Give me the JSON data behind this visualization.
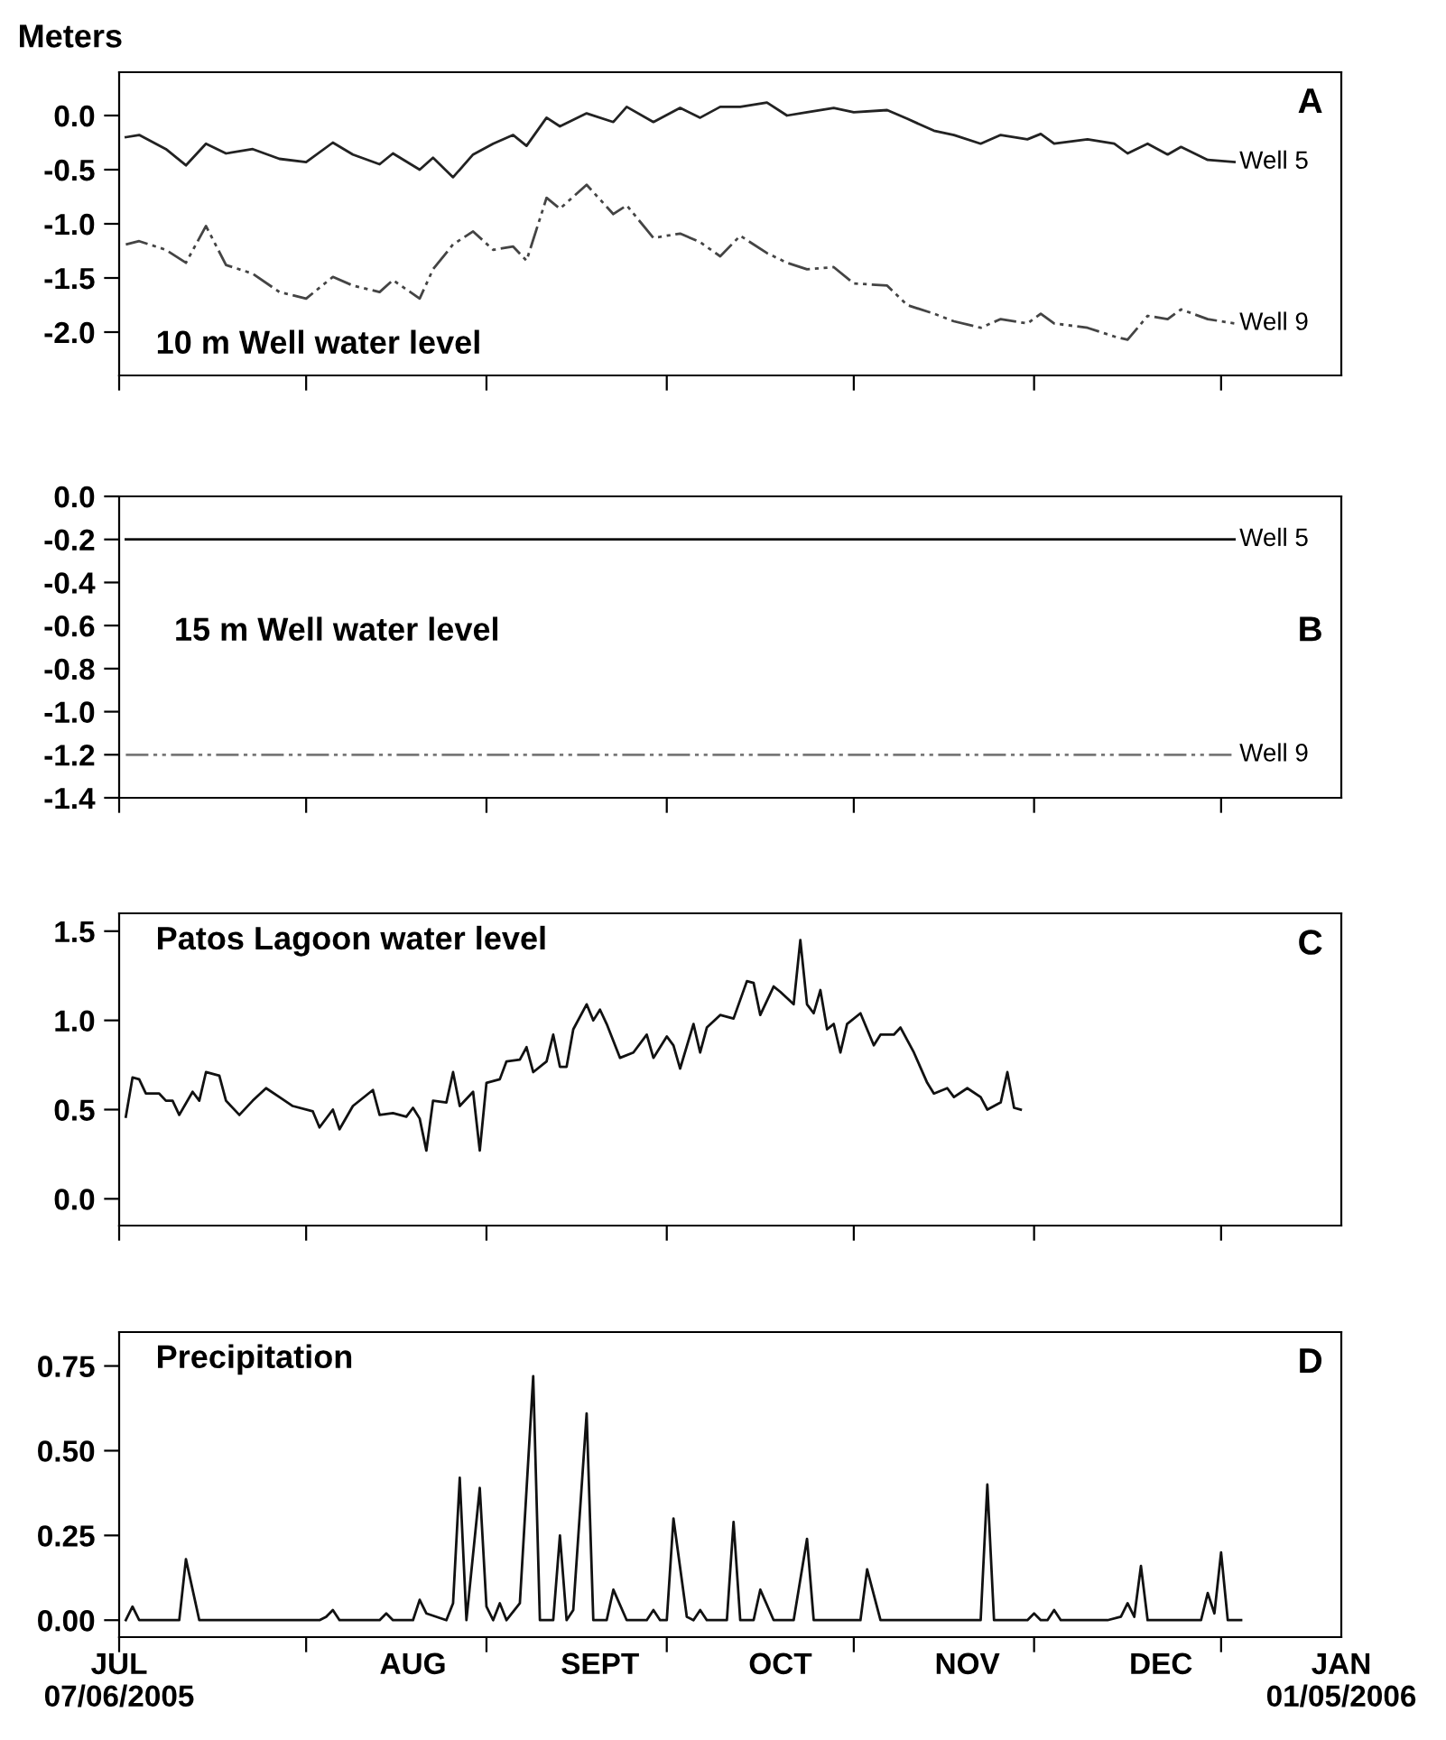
{
  "chart_data": [
    {
      "type": "line",
      "title": "10 m Well water level",
      "ylabel": "Meters",
      "annotations": [
        "A"
      ],
      "xlim": [
        "2005-07-06",
        "2006-01-05"
      ],
      "ylim": [
        -2.4,
        0.4
      ],
      "yticks": [
        {
          "value": 0,
          "label": "0.0"
        },
        {
          "value": -0.5,
          "label": "-0.5"
        },
        {
          "value": -1,
          "label": "-1.0"
        },
        {
          "value": -1.5,
          "label": "-1.5"
        },
        {
          "value": -2,
          "label": "-2.0"
        }
      ],
      "tick_labels": "y",
      "xticks": [
        {
          "value": "2005-07-06",
          "label": null
        },
        {
          "value": "2005-08-03",
          "label": null
        },
        {
          "value": "2005-08-30",
          "label": null
        },
        {
          "value": "2005-09-26",
          "label": null
        },
        {
          "value": "2005-10-24",
          "label": null
        },
        {
          "value": "2005-11-20",
          "label": null
        },
        {
          "value": "2005-12-18",
          "label": null
        }
      ],
      "x": [
        "2005-07-07",
        "2005-07-09",
        "2005-07-13",
        "2005-07-16",
        "2005-07-19",
        "2005-07-22",
        "2005-07-26",
        "2005-07-30",
        "2005-08-03",
        "2005-08-07",
        "2005-08-10",
        "2005-08-14",
        "2005-08-16",
        "2005-08-20",
        "2005-08-22",
        "2005-08-25",
        "2005-08-28",
        "2005-08-31",
        "2005-09-03",
        "2005-09-05",
        "2005-09-08",
        "2005-09-10",
        "2005-09-14",
        "2005-09-18",
        "2005-09-20",
        "2005-09-24",
        "2005-09-28",
        "2005-10-01",
        "2005-10-04",
        "2005-10-07",
        "2005-10-11",
        "2005-10-14",
        "2005-10-17",
        "2005-10-21",
        "2005-10-24",
        "2005-10-29",
        "2005-11-01",
        "2005-11-05",
        "2005-11-08",
        "2005-11-12",
        "2005-11-15",
        "2005-11-19",
        "2005-11-21",
        "2005-11-23",
        "2005-11-28",
        "2005-12-02",
        "2005-12-04",
        "2005-12-07",
        "2005-12-10",
        "2005-12-12",
        "2005-12-16",
        "2005-12-20"
      ],
      "series": [
        {
          "name": "Well 5",
          "color": "#222222",
          "line_style": "solid",
          "values": [
            -0.2,
            -0.18,
            -0.31,
            -0.46,
            -0.26,
            -0.35,
            -0.31,
            -0.4,
            -0.43,
            -0.25,
            -0.36,
            -0.45,
            -0.35,
            -0.5,
            -0.39,
            -0.57,
            -0.36,
            -0.26,
            -0.18,
            -0.28,
            -0.02,
            -0.1,
            0.02,
            -0.06,
            0.08,
            -0.06,
            0.07,
            -0.02,
            0.08,
            0.08,
            0.12,
            0.0,
            0.03,
            0.07,
            0.03,
            0.05,
            -0.03,
            -0.14,
            -0.18,
            -0.26,
            -0.18,
            -0.22,
            -0.17,
            -0.26,
            -0.22,
            -0.26,
            -0.35,
            -0.26,
            -0.36,
            -0.29,
            -0.41,
            -0.43
          ]
        },
        {
          "name": "Well 9",
          "color": "#444444",
          "line_style": "dashed",
          "values": [
            -1.19,
            -1.16,
            -1.24,
            -1.36,
            -1.02,
            -1.38,
            -1.46,
            -1.63,
            -1.69,
            -1.49,
            -1.57,
            -1.63,
            -1.52,
            -1.69,
            -1.42,
            -1.19,
            -1.07,
            -1.24,
            -1.21,
            -1.34,
            -0.76,
            -0.86,
            -0.64,
            -0.91,
            -0.83,
            -1.13,
            -1.09,
            -1.17,
            -1.3,
            -1.11,
            -1.27,
            -1.36,
            -1.42,
            -1.4,
            -1.55,
            -1.57,
            -1.75,
            -1.83,
            -1.9,
            -1.96,
            -1.88,
            -1.92,
            -1.83,
            -1.92,
            -1.96,
            -2.04,
            -2.07,
            -1.85,
            -1.88,
            -1.79,
            -1.88,
            -1.92
          ]
        }
      ]
    },
    {
      "type": "line",
      "title": "15 m Well water level",
      "annotations": [
        "B"
      ],
      "xlim": [
        "2005-07-06",
        "2006-01-05"
      ],
      "ylim": [
        -1.4,
        0.0
      ],
      "yticks": [
        {
          "value": 0,
          "label": "0.0"
        },
        {
          "value": -0.2,
          "label": "-0.2"
        },
        {
          "value": -0.4,
          "label": "-0.4"
        },
        {
          "value": -0.6,
          "label": "-0.6"
        },
        {
          "value": -0.8,
          "label": "-0.8"
        },
        {
          "value": -1,
          "label": "-1.0"
        },
        {
          "value": -1.2,
          "label": "-1.2"
        },
        {
          "value": -1.4,
          "label": "-1.4"
        }
      ],
      "tick_labels": "y",
      "xticks": [
        {
          "value": "2005-07-06",
          "label": null
        },
        {
          "value": "2005-08-03",
          "label": null
        },
        {
          "value": "2005-08-30",
          "label": null
        },
        {
          "value": "2005-09-26",
          "label": null
        },
        {
          "value": "2005-10-24",
          "label": null
        },
        {
          "value": "2005-11-20",
          "label": null
        },
        {
          "value": "2005-12-18",
          "label": null
        }
      ],
      "x": [
        "2005-07-07",
        "2005-12-20"
      ],
      "series": [
        {
          "name": "Well 5",
          "color": "#111111",
          "line_style": "solid",
          "values": [
            -0.2,
            -0.2
          ]
        },
        {
          "name": "Well 9",
          "color": "#777777",
          "line_style": "dashed",
          "values": [
            -1.2,
            -1.2
          ]
        }
      ]
    },
    {
      "type": "line",
      "title": "Patos Lagoon water level",
      "annotations": [
        "C"
      ],
      "xlim": [
        "2005-07-06",
        "2006-01-05"
      ],
      "ylim": [
        -0.15,
        1.6
      ],
      "yticks": [
        {
          "value": 0,
          "label": "0.0"
        },
        {
          "value": 0.5,
          "label": "0.5"
        },
        {
          "value": 1,
          "label": "1.0"
        },
        {
          "value": 1.5,
          "label": "1.5"
        }
      ],
      "tick_labels": "y",
      "xticks": [
        {
          "value": "2005-07-06",
          "label": null
        },
        {
          "value": "2005-08-03",
          "label": null
        },
        {
          "value": "2005-08-30",
          "label": null
        },
        {
          "value": "2005-09-26",
          "label": null
        },
        {
          "value": "2005-10-24",
          "label": null
        },
        {
          "value": "2005-11-20",
          "label": null
        },
        {
          "value": "2005-12-18",
          "label": null
        }
      ],
      "x": [
        "2005-07-07",
        "2005-07-08",
        "2005-07-09",
        "2005-07-10",
        "2005-07-12",
        "2005-07-13",
        "2005-07-14",
        "2005-07-15",
        "2005-07-17",
        "2005-07-18",
        "2005-07-19",
        "2005-07-21",
        "2005-07-22",
        "2005-07-24",
        "2005-07-26",
        "2005-07-28",
        "2005-07-30",
        "2005-08-01",
        "2005-08-04",
        "2005-08-05",
        "2005-08-07",
        "2005-08-08",
        "2005-08-10",
        "2005-08-13",
        "2005-08-14",
        "2005-08-16",
        "2005-08-18",
        "2005-08-19",
        "2005-08-20",
        "2005-08-21",
        "2005-08-22",
        "2005-08-24",
        "2005-08-25",
        "2005-08-26",
        "2005-08-28",
        "2005-08-29",
        "2005-08-30",
        "2005-09-01",
        "2005-09-02",
        "2005-09-04",
        "2005-09-05",
        "2005-09-06",
        "2005-09-08",
        "2005-09-09",
        "2005-09-10",
        "2005-09-11",
        "2005-09-12",
        "2005-09-14",
        "2005-09-15",
        "2005-09-16",
        "2005-09-17",
        "2005-09-19",
        "2005-09-21",
        "2005-09-23",
        "2005-09-24",
        "2005-09-26",
        "2005-09-27",
        "2005-09-28",
        "2005-09-30",
        "2005-10-01",
        "2005-10-02",
        "2005-10-04",
        "2005-10-06",
        "2005-10-08",
        "2005-10-09",
        "2005-10-10",
        "2005-10-12",
        "2005-10-13",
        "2005-10-15",
        "2005-10-16",
        "2005-10-17",
        "2005-10-18",
        "2005-10-19",
        "2005-10-20",
        "2005-10-21",
        "2005-10-22",
        "2005-10-23",
        "2005-10-25",
        "2005-10-27",
        "2005-10-28",
        "2005-10-30",
        "2005-10-31",
        "2005-11-02",
        "2005-11-04",
        "2005-11-05",
        "2005-11-07",
        "2005-11-08",
        "2005-11-10",
        "2005-11-12",
        "2005-11-13",
        "2005-11-15",
        "2005-11-16",
        "2005-11-17",
        "2005-11-18"
      ],
      "series": [
        {
          "color": "#111111",
          "line_style": "solid",
          "values": [
            0.46,
            0.68,
            0.67,
            0.59,
            0.59,
            0.55,
            0.55,
            0.47,
            0.6,
            0.55,
            0.71,
            0.69,
            0.55,
            0.47,
            0.55,
            0.62,
            0.57,
            0.52,
            0.49,
            0.4,
            0.5,
            0.39,
            0.52,
            0.61,
            0.47,
            0.48,
            0.46,
            0.51,
            0.45,
            0.27,
            0.55,
            0.54,
            0.71,
            0.52,
            0.6,
            0.27,
            0.65,
            0.67,
            0.77,
            0.78,
            0.85,
            0.71,
            0.77,
            0.92,
            0.74,
            0.74,
            0.95,
            1.09,
            1.0,
            1.06,
            0.98,
            0.79,
            0.82,
            0.92,
            0.79,
            0.91,
            0.86,
            0.73,
            0.98,
            0.82,
            0.96,
            1.03,
            1.01,
            1.22,
            1.21,
            1.03,
            1.19,
            1.16,
            1.09,
            1.45,
            1.09,
            1.04,
            1.17,
            0.95,
            0.98,
            0.82,
            0.98,
            1.04,
            0.86,
            0.92,
            0.92,
            0.96,
            0.82,
            0.65,
            0.59,
            0.62,
            0.57,
            0.62,
            0.57,
            0.5,
            0.54,
            0.71,
            0.51,
            0.5
          ]
        }
      ]
    },
    {
      "type": "line",
      "title": "Precipitation",
      "annotations": [
        "D"
      ],
      "xlim": [
        "2005-07-06",
        "2006-01-05"
      ],
      "ylim": [
        -0.05,
        0.85
      ],
      "yticks": [
        {
          "value": 0,
          "label": "0.00"
        },
        {
          "value": 0.25,
          "label": "0.25"
        },
        {
          "value": 0.5,
          "label": "0.50"
        },
        {
          "value": 0.75,
          "label": "0.75"
        }
      ],
      "xticks": [
        {
          "value": "2005-07-06",
          "label": null
        },
        {
          "value": "2005-08-03",
          "label": null
        },
        {
          "value": "2005-08-30",
          "label": null
        },
        {
          "value": "2005-09-26",
          "label": null
        },
        {
          "value": "2005-10-24",
          "label": null
        },
        {
          "value": "2005-11-20",
          "label": null
        },
        {
          "value": "2005-12-18",
          "label": null
        },
        {
          "value": "2005-07-06",
          "label": "JUL\n07/06/2005"
        },
        {
          "value": "2005-08-19",
          "label": "AUG"
        },
        {
          "value": "2005-09-16",
          "label": "SEPT"
        },
        {
          "value": "2005-10-13",
          "label": "OCT"
        },
        {
          "value": "2005-11-10",
          "label": "NOV"
        },
        {
          "value": "2005-12-09",
          "label": "DEC"
        },
        {
          "value": "2006-01-05",
          "label": "JAN\n01/05/2006"
        }
      ],
      "x": [
        "2005-07-07",
        "2005-07-08",
        "2005-07-09",
        "2005-07-15",
        "2005-07-16",
        "2005-07-18",
        "2005-08-05",
        "2005-08-06",
        "2005-08-07",
        "2005-08-08",
        "2005-08-14",
        "2005-08-15",
        "2005-08-16",
        "2005-08-19",
        "2005-08-20",
        "2005-08-21",
        "2005-08-24",
        "2005-08-25",
        "2005-08-26",
        "2005-08-27",
        "2005-08-29",
        "2005-08-30",
        "2005-08-31",
        "2005-09-01",
        "2005-09-02",
        "2005-09-04",
        "2005-09-06",
        "2005-09-07",
        "2005-09-09",
        "2005-09-10",
        "2005-09-11",
        "2005-09-12",
        "2005-09-14",
        "2005-09-15",
        "2005-09-17",
        "2005-09-18",
        "2005-09-20",
        "2005-09-23",
        "2005-09-24",
        "2005-09-25",
        "2005-09-26",
        "2005-09-27",
        "2005-09-29",
        "2005-09-30",
        "2005-10-01",
        "2005-10-02",
        "2005-10-05",
        "2005-10-06",
        "2005-10-07",
        "2005-10-09",
        "2005-10-10",
        "2005-10-12",
        "2005-10-15",
        "2005-10-17",
        "2005-10-18",
        "2005-10-25",
        "2005-10-26",
        "2005-10-28",
        "2005-11-12",
        "2005-11-13",
        "2005-11-14",
        "2005-11-19",
        "2005-11-20",
        "2005-11-21",
        "2005-11-22",
        "2005-11-23",
        "2005-11-24",
        "2005-12-01",
        "2005-12-03",
        "2005-12-04",
        "2005-12-05",
        "2005-12-06",
        "2005-12-07",
        "2005-12-15",
        "2005-12-16",
        "2005-12-17",
        "2005-12-18",
        "2005-12-19",
        "2005-12-21"
      ],
      "series": [
        {
          "color": "#111111",
          "line_style": "solid",
          "values": [
            0,
            0.04,
            0,
            0,
            0.18,
            0,
            0,
            0.01,
            0.03,
            0,
            0,
            0.02,
            0,
            0,
            0.06,
            0.02,
            0,
            0.05,
            0.42,
            0,
            0.39,
            0.04,
            0,
            0.05,
            0,
            0.05,
            0.72,
            0,
            0,
            0.25,
            0,
            0.03,
            0.61,
            0,
            0,
            0.09,
            0,
            0,
            0.03,
            0,
            0,
            0.3,
            0.01,
            0,
            0.03,
            0,
            0,
            0.29,
            0,
            0,
            0.09,
            0,
            0,
            0.24,
            0,
            0,
            0.15,
            0,
            0,
            0.4,
            0,
            0,
            0.02,
            0,
            0,
            0.03,
            0,
            0,
            0.01,
            0.05,
            0.01,
            0.16,
            0,
            0,
            0.08,
            0.02,
            0.2,
            0,
            0
          ]
        }
      ]
    }
  ]
}
